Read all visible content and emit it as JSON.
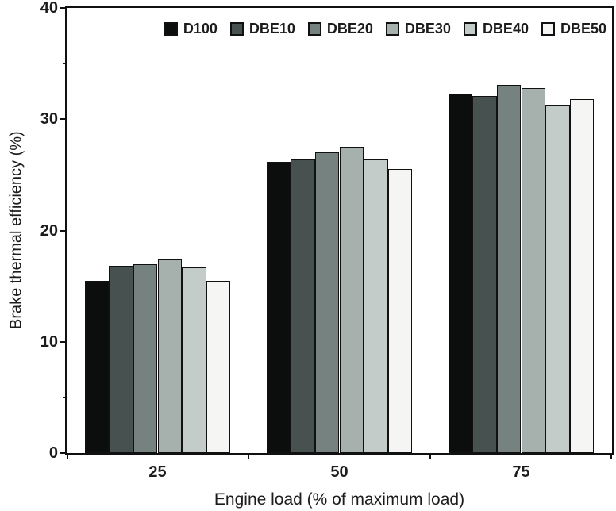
{
  "figure": {
    "background": "#ffffff",
    "axis_color": "#111111",
    "text_color": "#1c1c1c"
  },
  "chart_data": {
    "type": "bar",
    "title": "",
    "xlabel": "Engine load (% of maximum load)",
    "ylabel": "Brake thermal efficiency (%)",
    "categories": [
      "25",
      "50",
      "75"
    ],
    "series": [
      {
        "name": "D100",
        "color": "#0c0e0d",
        "values": [
          15.5,
          26.2,
          32.3
        ]
      },
      {
        "name": "DBE10",
        "color": "#47514f",
        "values": [
          16.8,
          26.4,
          32.1
        ]
      },
      {
        "name": "DBE20",
        "color": "#75827f",
        "values": [
          17.0,
          27.0,
          33.1
        ]
      },
      {
        "name": "DBE30",
        "color": "#a6b1ad",
        "values": [
          17.4,
          27.5,
          32.8
        ]
      },
      {
        "name": "DBE40",
        "color": "#c3ccc8",
        "values": [
          16.7,
          26.4,
          31.3
        ]
      },
      {
        "name": "DBE50",
        "color": "#f5f6f4",
        "values": [
          15.5,
          25.5,
          31.8
        ]
      }
    ],
    "ylim": [
      0,
      40
    ],
    "y_major_ticks": [
      0,
      10,
      20,
      30,
      40
    ],
    "y_minor_ticks": [
      5,
      15,
      25,
      35
    ],
    "bar_outline": "#111111",
    "group_fill_fraction": 0.8,
    "legend_position": "top",
    "grid": false
  }
}
